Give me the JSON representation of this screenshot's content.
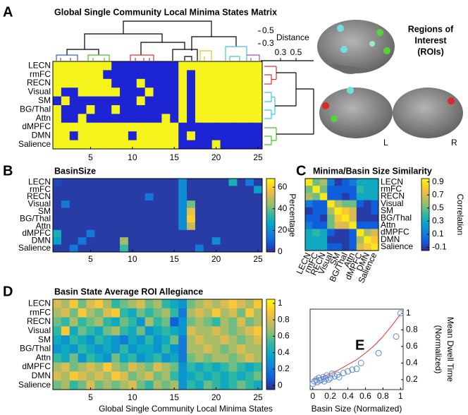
{
  "chart_data": [
    {
      "type": "heatmap",
      "panel": "A",
      "title": "Global Single Community Local Minima States Matrix",
      "rows": [
        "LECN",
        "rmFC",
        "RECN",
        "Visual",
        "SM",
        "BG/Thal",
        "Attn",
        "dMPFC",
        "DMN",
        "Salience"
      ],
      "xlim": [
        0.5,
        25.5
      ],
      "xticks": [
        5,
        10,
        15,
        20,
        25
      ],
      "clim": [
        0,
        1
      ],
      "colormap": [
        "#1c24d4",
        "#f4f41c"
      ],
      "dendrogram_label": "Distance",
      "dendrogram_yticks": [
        0.5,
        0.3
      ],
      "dendrogram_xticks": [
        0.3,
        0.5
      ],
      "values": [
        [
          1,
          1,
          1,
          1,
          1,
          1,
          1,
          0,
          0,
          0,
          0,
          0,
          0,
          0,
          0,
          1,
          1,
          1,
          1,
          1,
          1,
          1,
          1,
          1,
          1
        ],
        [
          1,
          1,
          1,
          1,
          1,
          1,
          0,
          0,
          0,
          0,
          0,
          0,
          0,
          0,
          0,
          1,
          0,
          1,
          1,
          1,
          1,
          1,
          1,
          1,
          1
        ],
        [
          1,
          1,
          1,
          1,
          1,
          1,
          1,
          0,
          0,
          0,
          1,
          0,
          0,
          0,
          0,
          1,
          0,
          1,
          1,
          1,
          1,
          1,
          1,
          1,
          1
        ],
        [
          1,
          0,
          0,
          1,
          1,
          1,
          1,
          1,
          0,
          0,
          0,
          1,
          0,
          0,
          0,
          1,
          0,
          1,
          1,
          1,
          1,
          1,
          1,
          1,
          1
        ],
        [
          0,
          1,
          0,
          0,
          0,
          0,
          0,
          0,
          0,
          0,
          1,
          0,
          0,
          0,
          0,
          1,
          0,
          1,
          1,
          1,
          1,
          1,
          1,
          1,
          1
        ],
        [
          1,
          0,
          0,
          0,
          1,
          0,
          0,
          1,
          0,
          0,
          0,
          0,
          0,
          0,
          0,
          1,
          0,
          1,
          1,
          1,
          1,
          1,
          1,
          1,
          1
        ],
        [
          1,
          0,
          0,
          1,
          0,
          0,
          0,
          0,
          0,
          0,
          0,
          0,
          0,
          1,
          0,
          1,
          0,
          1,
          1,
          1,
          1,
          1,
          1,
          1,
          1
        ],
        [
          1,
          1,
          1,
          1,
          1,
          1,
          1,
          1,
          1,
          1,
          1,
          1,
          1,
          1,
          1,
          0,
          0,
          0,
          0,
          0,
          0,
          0,
          0,
          0,
          0
        ],
        [
          1,
          1,
          0,
          1,
          1,
          1,
          1,
          1,
          1,
          0,
          1,
          1,
          1,
          1,
          1,
          0,
          1,
          0,
          0,
          0,
          0,
          0,
          0,
          0,
          0
        ],
        [
          1,
          1,
          1,
          1,
          1,
          1,
          1,
          1,
          1,
          1,
          1,
          1,
          1,
          1,
          1,
          0,
          0,
          0,
          0,
          1,
          0,
          0,
          0,
          0,
          0
        ]
      ]
    },
    {
      "type": "heatmap",
      "panel": "B",
      "title": "BasinSize",
      "rows": [
        "LECN",
        "rmFC",
        "RECN",
        "Visual",
        "SM",
        "BG/Thal",
        "Attn",
        "dMPFC",
        "DMN",
        "Salience"
      ],
      "xlim": [
        0.5,
        25.5
      ],
      "xticks": [
        5,
        10,
        15,
        20,
        25
      ],
      "clim": [
        0,
        68
      ],
      "cticks": [
        0,
        20,
        40,
        60
      ],
      "clabel": "Percentage",
      "colormap": [
        "#352a87",
        "#0f5cdd",
        "#1481d6",
        "#06a4ca",
        "#2eb7a4",
        "#87bf77",
        "#d1bb59",
        "#fec832",
        "#f9fb0e"
      ],
      "values": [
        [
          5,
          3,
          3,
          3,
          3,
          3,
          3,
          3,
          3,
          3,
          3,
          3,
          3,
          3,
          3,
          20,
          3,
          3,
          3,
          3,
          3,
          30,
          3,
          15,
          3
        ],
        [
          3,
          3,
          3,
          3,
          3,
          3,
          3,
          3,
          3,
          3,
          3,
          3,
          3,
          3,
          3,
          20,
          3,
          3,
          3,
          3,
          3,
          3,
          3,
          3,
          25
        ],
        [
          3,
          3,
          3,
          3,
          3,
          3,
          3,
          3,
          3,
          3,
          3,
          15,
          3,
          3,
          3,
          20,
          3,
          3,
          3,
          3,
          3,
          3,
          3,
          3,
          3
        ],
        [
          3,
          15,
          3,
          3,
          3,
          3,
          3,
          3,
          3,
          3,
          3,
          3,
          3,
          3,
          3,
          20,
          40,
          3,
          3,
          3,
          3,
          3,
          3,
          3,
          3
        ],
        [
          3,
          3,
          3,
          3,
          3,
          3,
          3,
          3,
          3,
          3,
          3,
          3,
          3,
          3,
          3,
          20,
          55,
          3,
          3,
          3,
          3,
          3,
          3,
          3,
          3
        ],
        [
          3,
          3,
          3,
          3,
          3,
          3,
          3,
          3,
          3,
          3,
          3,
          3,
          3,
          3,
          3,
          20,
          60,
          3,
          3,
          3,
          3,
          3,
          3,
          3,
          3
        ],
        [
          3,
          3,
          3,
          3,
          3,
          3,
          3,
          3,
          3,
          3,
          3,
          3,
          3,
          3,
          3,
          20,
          50,
          3,
          3,
          3,
          3,
          3,
          3,
          3,
          3
        ],
        [
          30,
          3,
          3,
          3,
          15,
          3,
          3,
          3,
          3,
          3,
          3,
          3,
          3,
          3,
          3,
          3,
          3,
          3,
          3,
          3,
          3,
          3,
          3,
          3,
          3
        ],
        [
          25,
          3,
          3,
          15,
          3,
          3,
          3,
          3,
          45,
          3,
          3,
          3,
          3,
          3,
          3,
          3,
          3,
          3,
          3,
          20,
          3,
          3,
          3,
          3,
          3
        ],
        [
          3,
          3,
          15,
          3,
          3,
          3,
          3,
          3,
          35,
          3,
          3,
          3,
          3,
          3,
          3,
          3,
          3,
          15,
          3,
          3,
          3,
          3,
          3,
          3,
          3
        ]
      ]
    },
    {
      "type": "heatmap",
      "panel": "C",
      "title": "Minima/Basin Size Similarity",
      "rows": [
        "LECN",
        "rmFC",
        "RECN",
        "Visual",
        "SM",
        "BG/Thal",
        "Attn",
        "dMPFC",
        "DMN",
        "Salience"
      ],
      "clim": [
        -0.15,
        0.95
      ],
      "cticks": [
        0.9,
        0.7,
        0.5,
        0.3,
        0.1,
        -0.1
      ],
      "clabel": "Correlation",
      "colormap": [
        "#352a87",
        "#0f5cdd",
        "#1481d6",
        "#06a4ca",
        "#2eb7a4",
        "#87bf77",
        "#d1bb59",
        "#fec832",
        "#f9fb0e"
      ],
      "values": [
        [
          0.9,
          0.5,
          0.6,
          0.1,
          -0.1,
          0,
          0.1,
          0.3,
          0.3,
          0.3
        ],
        [
          0.5,
          0.9,
          0.5,
          0,
          0,
          0,
          0,
          0.4,
          0.3,
          0.3
        ],
        [
          0.6,
          0.5,
          0.9,
          0,
          0,
          -0.1,
          0,
          0.3,
          0.3,
          0.3
        ],
        [
          0.1,
          0,
          0,
          0.9,
          0.6,
          0.5,
          0.5,
          0,
          -0.1,
          0
        ],
        [
          -0.1,
          0,
          0,
          0.6,
          0.9,
          0.8,
          0.7,
          -0.1,
          -0.1,
          0
        ],
        [
          0,
          0,
          -0.1,
          0.5,
          0.8,
          0.9,
          0.7,
          -0.1,
          -0.1,
          -0.1
        ],
        [
          0.1,
          0,
          0,
          0.5,
          0.7,
          0.7,
          0.9,
          0,
          0,
          0
        ],
        [
          0.3,
          0.4,
          0.3,
          0,
          -0.1,
          -0.1,
          0,
          0.9,
          0.6,
          0.7
        ],
        [
          0.3,
          0.3,
          0.3,
          -0.1,
          -0.1,
          -0.1,
          0,
          0.6,
          0.9,
          0.8
        ],
        [
          0.3,
          0.3,
          0.3,
          0,
          0,
          -0.1,
          0,
          0.7,
          0.8,
          0.9
        ]
      ]
    },
    {
      "type": "heatmap",
      "panel": "D",
      "title": "Basin State Average ROI Allegiance",
      "rows": [
        "LECN",
        "rmFC",
        "RECN",
        "Visual",
        "SM",
        "BG/Thal",
        "Attn",
        "dMPFC",
        "DMN",
        "Salience"
      ],
      "xlim": [
        0.5,
        25.5
      ],
      "xticks": [
        5,
        10,
        15,
        20,
        25
      ],
      "xlabel": "Global Single Community Local Minima States",
      "clim": [
        -0.05,
        1.05
      ],
      "cticks": [
        0,
        0.2,
        0.4,
        0.6,
        0.8,
        1
      ],
      "colormap": [
        "#352a87",
        "#0f5cdd",
        "#1481d6",
        "#06a4ca",
        "#2eb7a4",
        "#87bf77",
        "#d1bb59",
        "#fec832",
        "#f9fb0e"
      ],
      "values": [
        [
          0.8,
          0.7,
          0.9,
          0.6,
          0.8,
          0.9,
          0.7,
          0.5,
          0.6,
          0.7,
          0.8,
          0.6,
          0.7,
          0.5,
          0.4,
          0.3,
          0.6,
          0.7,
          0.8,
          0.7,
          0.8,
          0.9,
          0.8,
          0.7,
          0.9
        ],
        [
          0.7,
          0.8,
          0.6,
          0.9,
          0.7,
          0.6,
          0.8,
          0.9,
          0.5,
          0.4,
          0.6,
          0.5,
          0.6,
          0.7,
          0.5,
          0.2,
          0.7,
          0.8,
          0.7,
          0.9,
          0.7,
          0.8,
          0.6,
          0.9,
          0.7
        ],
        [
          0.6,
          0.5,
          0.7,
          0.5,
          0.6,
          0.7,
          0.5,
          0.4,
          0.6,
          0.5,
          0.3,
          0.7,
          0.5,
          0.6,
          0.1,
          0.3,
          0.6,
          0.7,
          0.6,
          0.5,
          0.7,
          0.6,
          0.8,
          0.6,
          0.7
        ],
        [
          0.5,
          0.9,
          0.4,
          0.6,
          0.5,
          0.4,
          0.6,
          0.7,
          0.5,
          0.4,
          0.6,
          0.3,
          0.4,
          0.5,
          0.4,
          0.3,
          0.8,
          0.7,
          0.7,
          0.8,
          0.7,
          0.6,
          0.7,
          0.8,
          0.9
        ],
        [
          0.4,
          0.3,
          0.5,
          0.4,
          0.3,
          0.5,
          0.4,
          0.3,
          0.2,
          0.4,
          0.3,
          0.5,
          0.3,
          0.4,
          0.6,
          0.2,
          0.7,
          0.8,
          0.7,
          0.7,
          0.8,
          0.7,
          0.6,
          0.7,
          0.8
        ],
        [
          0.3,
          0.4,
          0.3,
          0.5,
          0.4,
          0.3,
          0.4,
          0.3,
          0.5,
          0.3,
          0.4,
          0.4,
          0.3,
          0.5,
          0.3,
          0.2,
          0.7,
          0.7,
          0.8,
          0.7,
          0.6,
          0.7,
          0.8,
          0.7,
          0.7
        ],
        [
          0.5,
          0.4,
          0.6,
          0.3,
          0.5,
          0.4,
          0.3,
          0.6,
          0.4,
          0.5,
          0.3,
          0.4,
          0.5,
          0.3,
          0.4,
          0.2,
          0.6,
          0.7,
          0.6,
          0.7,
          0.7,
          0.6,
          0.7,
          0.8,
          0.7
        ],
        [
          0.7,
          0.8,
          0.6,
          0.7,
          0.8,
          0.7,
          0.9,
          0.7,
          0.6,
          0.8,
          0.7,
          0.6,
          0.8,
          0.7,
          0.6,
          0.3,
          0.5,
          0.4,
          0.5,
          0.4,
          0.5,
          0.6,
          0.5,
          0.4,
          0.5
        ],
        [
          0.8,
          0.7,
          0.9,
          0.8,
          0.7,
          0.8,
          0.7,
          0.9,
          0.8,
          0.6,
          0.7,
          0.8,
          0.6,
          0.7,
          0.5,
          0.3,
          0.4,
          0.5,
          0.4,
          0.5,
          0.4,
          0.5,
          0.4,
          0.5,
          0.6
        ],
        [
          0.6,
          0.7,
          0.5,
          0.6,
          0.8,
          0.6,
          0.7,
          0.6,
          0.7,
          0.8,
          0.6,
          0.5,
          0.7,
          0.6,
          0.7,
          0.3,
          0.5,
          0.4,
          0.6,
          0.5,
          0.4,
          0.5,
          0.6,
          0.5,
          0.4
        ]
      ]
    },
    {
      "type": "scatter",
      "panel": "E",
      "xlabel": "Basin Size (Normalized)",
      "ylabel": [
        "Mean Dwell Time",
        "(Normalized)"
      ],
      "xlim": [
        -0.03,
        1.03
      ],
      "ylim": [
        0.08,
        1.05
      ],
      "xticks": [
        0,
        0.2,
        0.4,
        0.6,
        0.8,
        1
      ],
      "yticks": [
        0.2,
        0.4,
        0.6,
        0.8,
        1
      ],
      "color": "#5b8bd6",
      "x": [
        0,
        0.02,
        0.04,
        0.05,
        0.07,
        0.08,
        0.1,
        0.12,
        0.13,
        0.15,
        0.16,
        0.18,
        0.2,
        0.22,
        0.25,
        0.28,
        0.3,
        0.35,
        0.4,
        0.45,
        0.5,
        0.55,
        0.75,
        0.95,
        1
      ],
      "values": [
        0.15,
        0.18,
        0.2,
        0.17,
        0.22,
        0.19,
        0.2,
        0.23,
        0.18,
        0.21,
        0.25,
        0.2,
        0.22,
        0.27,
        0.24,
        0.26,
        0.23,
        0.28,
        0.3,
        0.32,
        0.33,
        0.4,
        0.52,
        0.72,
        1
      ],
      "fit": {
        "color": "#e8302a",
        "x": [
          0,
          0.1,
          0.2,
          0.3,
          0.4,
          0.5,
          0.6,
          0.7,
          0.8,
          0.9,
          1
        ],
        "values": [
          0.2,
          0.23,
          0.27,
          0.32,
          0.38,
          0.44,
          0.52,
          0.61,
          0.72,
          0.85,
          0.99
        ]
      }
    }
  ],
  "roi_panel": {
    "title": [
      "Regions of",
      "Interest",
      "(ROIs)"
    ],
    "left": "L",
    "right": "R"
  }
}
